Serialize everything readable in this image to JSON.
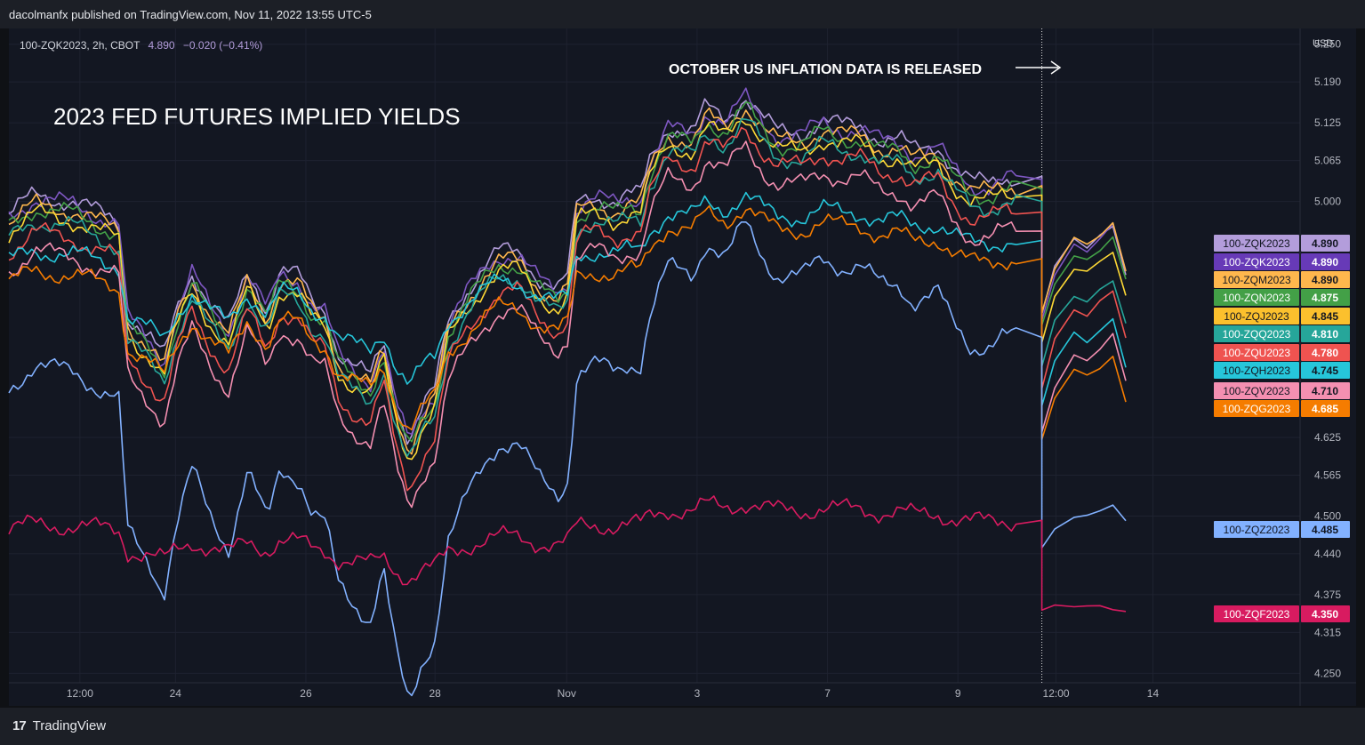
{
  "header": {
    "publisher": "dacolmanfx published on TradingView.com, Nov 11, 2022 13:55 UTC-5"
  },
  "legend_line": {
    "symbol": "100-ZQK2023, 2h, CBOT",
    "value": "4.890",
    "change": "−0.020 (−0.41%)"
  },
  "currency": "USD",
  "brand": {
    "logo": "17",
    "name": "TradingView"
  },
  "chart_data": {
    "type": "line",
    "title": "2023 FED FUTURES IMPLIED YIELDS",
    "annotation": "OCTOBER US INFLATION DATA IS RELEASED",
    "ylim": [
      4.25,
      5.25
    ],
    "y_ticks": [
      "5.250",
      "5.190",
      "5.125",
      "5.065",
      "5.000",
      "4.625",
      "4.565",
      "4.500",
      "4.440",
      "4.375",
      "4.315",
      "4.250"
    ],
    "x_ticks": [
      {
        "label": "12:00",
        "t": 0.055
      },
      {
        "label": "24",
        "t": 0.129
      },
      {
        "label": "26",
        "t": 0.23
      },
      {
        "label": "28",
        "t": 0.33
      },
      {
        "label": "Nov",
        "t": 0.432
      },
      {
        "label": "3",
        "t": 0.533
      },
      {
        "label": "7",
        "t": 0.634
      },
      {
        "label": "9",
        "t": 0.735
      },
      {
        "label": "12:00",
        "t": 0.811
      },
      {
        "label": "14",
        "t": 0.886
      }
    ],
    "event_t": 0.8,
    "grid": true,
    "series": [
      {
        "name": "100-ZQK2023",
        "color": "#b39ddb",
        "last": "4.890",
        "label_bg": "#b39ddb",
        "label_fg": "#131722"
      },
      {
        "name": "100-ZQK2023",
        "color": "#7e57c2",
        "last": "4.890",
        "label_bg": "#673ab7",
        "label_fg": "#ffffff"
      },
      {
        "name": "100-ZQM2023",
        "color": "#ffb74d",
        "last": "4.890",
        "label_bg": "#ffb74d",
        "label_fg": "#131722"
      },
      {
        "name": "100-ZQN2023",
        "color": "#43a047",
        "last": "4.875",
        "label_bg": "#43a047",
        "label_fg": "#ffffff"
      },
      {
        "name": "100-ZQJ2023",
        "color": "#fdd835",
        "last": "4.845",
        "label_bg": "#fbc02d",
        "label_fg": "#131722"
      },
      {
        "name": "100-ZQQ2023",
        "color": "#26a69a",
        "last": "4.810",
        "label_bg": "#26a69a",
        "label_fg": "#ffffff"
      },
      {
        "name": "100-ZQU2023",
        "color": "#ef5350",
        "last": "4.780",
        "label_bg": "#ef5350",
        "label_fg": "#ffffff"
      },
      {
        "name": "100-ZQH2023",
        "color": "#26c6da",
        "last": "4.745",
        "label_bg": "#26c6da",
        "label_fg": "#131722"
      },
      {
        "name": "100-ZQV2023",
        "color": "#f48fb1",
        "last": "4.710",
        "label_bg": "#f48fb1",
        "label_fg": "#131722"
      },
      {
        "name": "100-ZQG2023",
        "color": "#f57c00",
        "last": "4.685",
        "label_bg": "#f57c00",
        "label_fg": "#ffffff"
      },
      {
        "name": "100-ZQZ2023",
        "color": "#82b1ff",
        "last": "4.485",
        "label_bg": "#82b1ff",
        "label_fg": "#131722"
      },
      {
        "name": "100-ZQF2023",
        "color": "#d81b60",
        "last": "4.350",
        "label_bg": "#d81b60",
        "label_fg": "#ffffff"
      }
    ],
    "shape_pts": [
      [
        0,
        0.0
      ],
      [
        0.02,
        0.03
      ],
      [
        0.05,
        0.02
      ],
      [
        0.072,
        0.0
      ],
      [
        0.085,
        -0.01
      ],
      [
        0.092,
        -0.16
      ],
      [
        0.11,
        -0.2
      ],
      [
        0.12,
        -0.23
      ],
      [
        0.13,
        -0.15
      ],
      [
        0.142,
        -0.09
      ],
      [
        0.155,
        -0.14
      ],
      [
        0.17,
        -0.18
      ],
      [
        0.185,
        -0.09
      ],
      [
        0.2,
        -0.15
      ],
      [
        0.21,
        -0.09
      ],
      [
        0.225,
        -0.1
      ],
      [
        0.235,
        -0.14
      ],
      [
        0.245,
        -0.15
      ],
      [
        0.255,
        -0.22
      ],
      [
        0.265,
        -0.24
      ],
      [
        0.28,
        -0.26
      ],
      [
        0.29,
        -0.2
      ],
      [
        0.3,
        -0.3
      ],
      [
        0.31,
        -0.36
      ],
      [
        0.32,
        -0.31
      ],
      [
        0.33,
        -0.28
      ],
      [
        0.34,
        -0.17
      ],
      [
        0.355,
        -0.12
      ],
      [
        0.37,
        -0.08
      ],
      [
        0.38,
        -0.06
      ],
      [
        0.395,
        -0.06
      ],
      [
        0.41,
        -0.1
      ],
      [
        0.425,
        -0.12
      ],
      [
        0.433,
        -0.1
      ],
      [
        0.44,
        0.02
      ],
      [
        0.455,
        0.03
      ],
      [
        0.47,
        0.02
      ],
      [
        0.48,
        0.03
      ],
      [
        0.49,
        0.03
      ],
      [
        0.495,
        0.08
      ],
      [
        0.51,
        0.14
      ],
      [
        0.53,
        0.13
      ],
      [
        0.54,
        0.17
      ],
      [
        0.555,
        0.15
      ],
      [
        0.57,
        0.19
      ],
      [
        0.585,
        0.15
      ],
      [
        0.595,
        0.13
      ],
      [
        0.615,
        0.13
      ],
      [
        0.63,
        0.15
      ],
      [
        0.645,
        0.14
      ],
      [
        0.66,
        0.14
      ],
      [
        0.675,
        0.12
      ],
      [
        0.69,
        0.12
      ],
      [
        0.7,
        0.1
      ],
      [
        0.72,
        0.11
      ],
      [
        0.73,
        0.08
      ],
      [
        0.745,
        0.05
      ],
      [
        0.76,
        0.05
      ],
      [
        0.77,
        0.06
      ],
      [
        0.78,
        0.06
      ]
    ],
    "post_pts": [
      [
        0.8,
        -0.24
      ],
      [
        0.81,
        -0.16
      ],
      [
        0.825,
        -0.11
      ],
      [
        0.835,
        -0.12
      ],
      [
        0.845,
        -0.1
      ],
      [
        0.855,
        -0.08
      ],
      [
        0.865,
        -0.16
      ]
    ],
    "series_params": [
      {
        "offset": 4.98,
        "amp": 1.0,
        "post": 4.89
      },
      {
        "offset": 4.975,
        "amp": 1.0,
        "post": 4.89
      },
      {
        "offset": 4.965,
        "amp": 1.0,
        "post": 4.89
      },
      {
        "offset": 4.96,
        "amp": 1.0,
        "post": 4.875
      },
      {
        "offset": 4.95,
        "amp": 1.0,
        "post": 4.845
      },
      {
        "offset": 4.94,
        "amp": 1.0,
        "post": 4.81
      },
      {
        "offset": 4.92,
        "amp": 1.05,
        "post": 4.78
      },
      {
        "offset": 4.905,
        "amp": 0.55,
        "post": 4.745
      },
      {
        "offset": 4.89,
        "amp": 1.05,
        "post": 4.71
      },
      {
        "offset": 4.87,
        "amp": 0.65,
        "post": 4.685
      },
      {
        "offset": 4.7,
        "amp": 1.4,
        "post": 4.485
      },
      {
        "offset": 4.48,
        "amp": 0.22,
        "post": 4.35
      }
    ]
  }
}
